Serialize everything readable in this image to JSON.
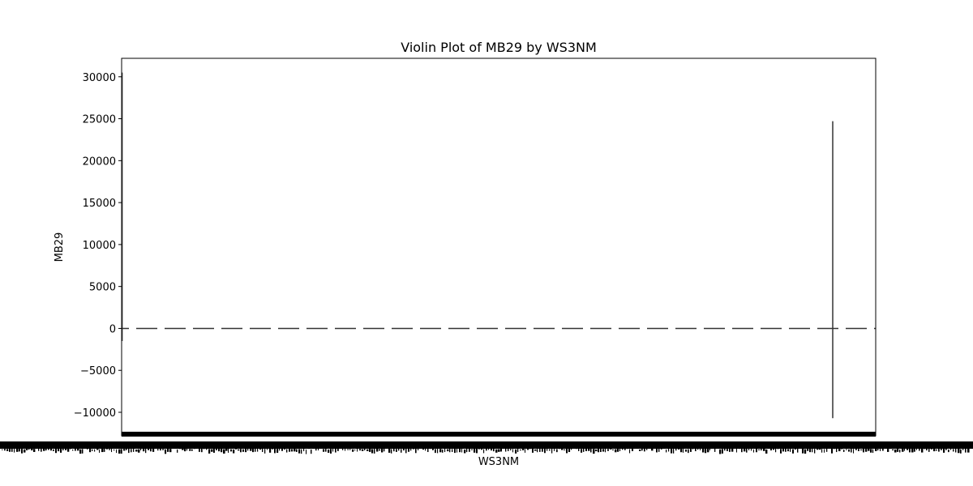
{
  "chart_data": {
    "type": "violin",
    "title": "Violin Plot of MB29 by WS3NM",
    "xlabel": "WS3NM",
    "ylabel": "MB29",
    "ylim": [
      -12800,
      32200
    ],
    "yticks": [
      -10000,
      -5000,
      0,
      5000,
      10000,
      15000,
      20000,
      25000,
      30000
    ],
    "ytick_labels": [
      "−10000",
      "−5000",
      "0",
      "5000",
      "10000",
      "15000",
      "20000",
      "25000",
      "30000"
    ],
    "median_line_y": 0,
    "violins": [
      {
        "name": "first category",
        "min": -1500,
        "max": 30500,
        "median": 0
      },
      {
        "name": "wide-range category",
        "min": -10700,
        "max": 24700,
        "median": 0
      }
    ],
    "category_labels_legible": false,
    "grid": false
  }
}
